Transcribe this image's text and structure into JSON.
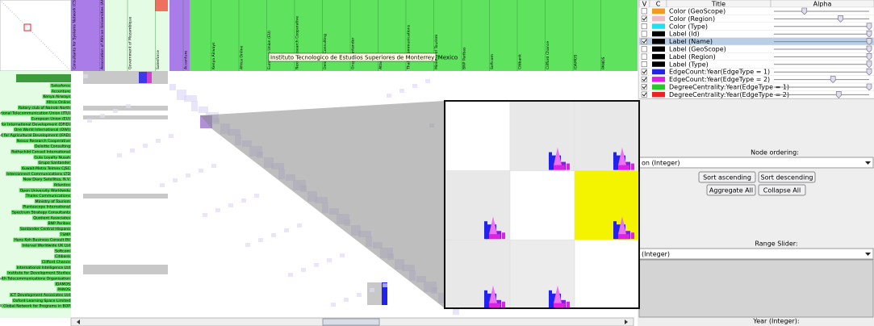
{
  "matrix": {
    "tooltip": "Instituto Tecnologico de Estudios Superiores de Monterrey, Mexico",
    "column_labels": [
      "Consultants for Systems Network (CSN)",
      "Association of African Universities (AAU)",
      "Government of Mozambique",
      "Salesforce",
      "Accenture",
      "Kenya Airways",
      "Africa Online",
      "European Union (EU)",
      "Nexus Research Cooperative",
      "Deloitte Consulting",
      "Grupo Santander",
      "Atlantico",
      "Thales Communications",
      "Ministry of Tourism",
      "BNP Paribas",
      "Softcom",
      "Citibank",
      "Clifford Chance",
      "IDAMOS",
      "PANOS"
    ],
    "row_labels": [
      "Salesforce",
      "Accenture",
      "Kenya Airways",
      "Africa Online",
      "Rotary club of Nairobi North",
      "International Telecommunication Union (ITU)",
      "European Union (EU)",
      "Department for International Development (DFID)",
      "One World International (OWI)",
      "International Fund for Agricultural Development (IFAD)",
      "Nexus Research Cooperative",
      "Deloitte Consulting",
      "Rothschild Conseil International",
      "Gula Loyalty Nusah",
      "Grupo Santander",
      "Kuwait-Metro Telmex CJSC",
      "Interconnect Communications LTD",
      "New Diary Satellites, N.V.",
      "Atlantico",
      "Open University Worldwide",
      "Thales Communications",
      "Ministry of Tourism",
      "Plantascope International",
      "Spectrum Strategy Consultants",
      "Quotient Associates",
      "BNP Paribas",
      "Santander Central Hispano",
      "TSMP",
      "Hans Koh Business Consult BV",
      "Interval Worldwide UK Ltd",
      "Softcom",
      "Citibank",
      "Clifford Chance",
      "International Intelligence Ltd",
      "Institute for Development Studies",
      "Commonwealth Telecommunications Organisation",
      "IDAMOS",
      "PANOS",
      "ICT Development Associates Ltd",
      "Oxford Learning Space Limited",
      "BASIX Global Network for Programs in BOP"
    ]
  },
  "layer_table": {
    "columns": [
      "V",
      "C",
      "Title",
      "Alpha"
    ],
    "selected_row": 4,
    "rows": [
      {
        "visible": false,
        "color": "#f39a1e",
        "title": "Color (GeoScope)",
        "alpha": 0.32
      },
      {
        "visible": true,
        "color": "#f4b8c8",
        "title": "Color (Region)",
        "alpha": 0.7
      },
      {
        "visible": false,
        "color": "#22e0f0",
        "title": "Color (Type)",
        "alpha": 1
      },
      {
        "visible": false,
        "color": "#000000",
        "title": "Label (Id)",
        "alpha": 1
      },
      {
        "visible": true,
        "color": "#000000",
        "title": "Label (Name)",
        "alpha": 1
      },
      {
        "visible": false,
        "color": "#000000",
        "title": "Label (GeoScope)",
        "alpha": 1
      },
      {
        "visible": false,
        "color": "#000000",
        "title": "Label (Region)",
        "alpha": 1
      },
      {
        "visible": false,
        "color": "#000000",
        "title": "Label (Type)",
        "alpha": 1
      },
      {
        "visible": true,
        "color": "#2222ee",
        "title": "EdgeCount:Year(EdgeType = 1)",
        "alpha": 1
      },
      {
        "visible": true,
        "color": "#e020e0",
        "title": "EdgeCount:Year(EdgeType = 2)",
        "alpha": 0.62
      },
      {
        "visible": true,
        "color": "#22cc22",
        "title": "DegreeCentrality:Year(EdgeType = 1)",
        "alpha": 1
      },
      {
        "visible": true,
        "color": "#ee2222",
        "title": "DegreeCentrality:Year(EdgeType = 2)",
        "alpha": 0.68
      }
    ]
  },
  "node_ordering": {
    "label": "Node ordering:",
    "selected": "on (Integer)",
    "buttons": [
      "Sort ascending",
      "Sort descending",
      "Aggregate All",
      "Collapse All"
    ]
  },
  "range_slider": {
    "label": "Range Slider:",
    "selected": "(Integer)",
    "footer": "Year (Integer):"
  }
}
